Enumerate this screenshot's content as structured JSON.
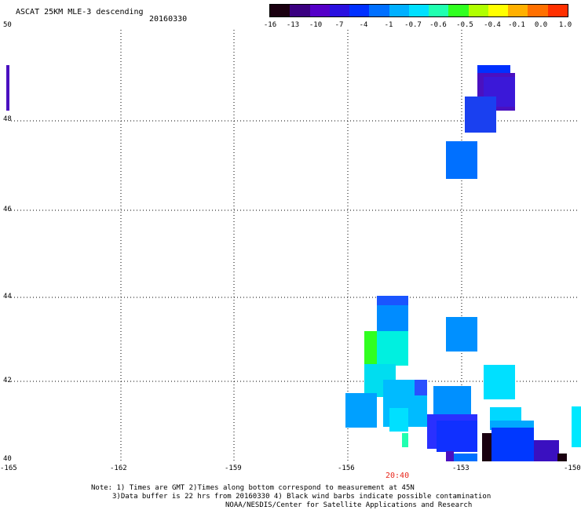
{
  "header": {
    "title": "ASCAT 25KM MLE-3 descending",
    "date": "20160330"
  },
  "colorbar": {
    "labels": [
      "-16",
      "-13",
      "-10",
      "-7",
      "-4",
      "-1",
      "-0.7",
      "-0.6",
      "-0.5",
      "-0.4",
      "-0.1",
      "0.0",
      "1.0"
    ],
    "colors": [
      "#1a0010",
      "#3a0080",
      "#5500c8",
      "#2a10e0",
      "#0030ff",
      "#0070ff",
      "#00b0ff",
      "#00e0ff",
      "#20ffb0",
      "#30ff20",
      "#b0ff00",
      "#ffff00",
      "#ffb000",
      "#ff7000",
      "#ff3000"
    ]
  },
  "map": {
    "lat_labels": [
      "50",
      "48",
      "46",
      "44",
      "42",
      "40"
    ],
    "lon_labels": [
      "-165",
      "-162",
      "-159",
      "-156",
      "-153",
      "-150"
    ],
    "time_label": "20:40"
  },
  "notes": {
    "line1": "Note: 1) Times are GMT 2)Times along bottom correspond to measurement at 45N",
    "line2": "3)Data buffer is 22 hrs from 20160330 4) Black wind barbs indicate possible contamination",
    "line3": "NOAA/NESDIS/Center for Satellite Applications and Research"
  }
}
